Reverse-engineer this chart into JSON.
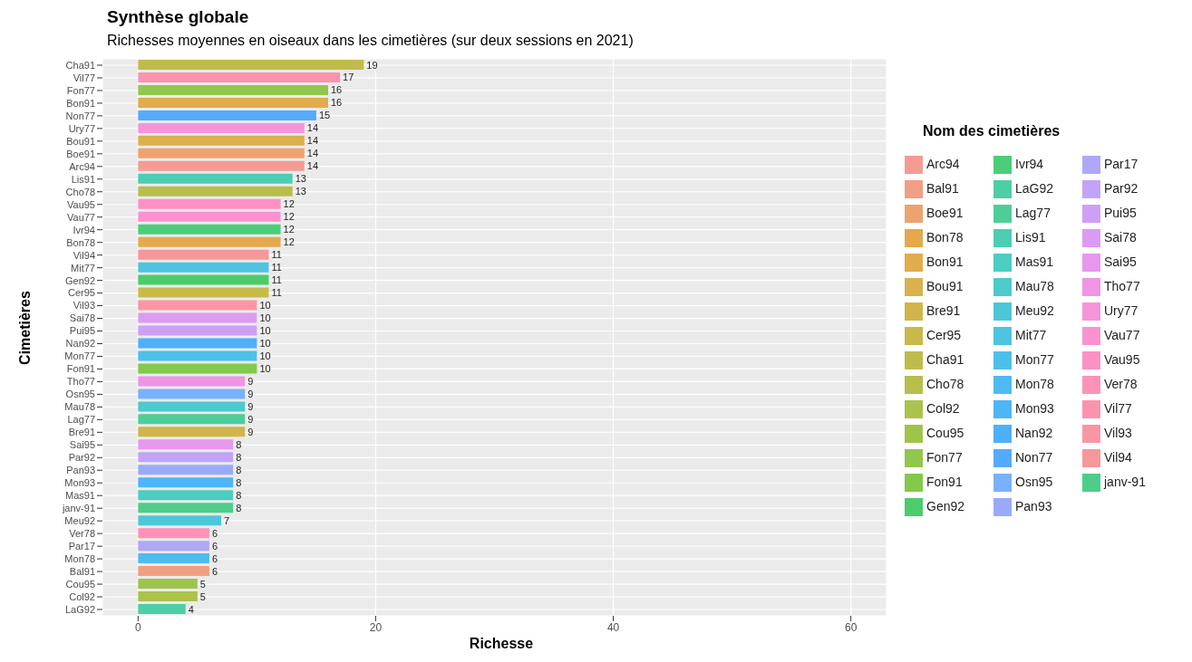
{
  "chart_data": {
    "type": "bar",
    "orientation": "horizontal",
    "stacked": true,
    "title": "Synthèse globale",
    "subtitle": "Richesses moyennes en oiseaux dans les cimetières (sur deux sessions en 2021)",
    "xlabel": "Richesse",
    "ylabel": "Cimetières",
    "legend_title": "Nom des cimetières",
    "legend": "right",
    "categories": [
      "Cha91",
      "Vil77",
      "Fon77",
      "Bon91",
      "Non77",
      "Ury77",
      "Bou91",
      "Boe91",
      "Arc94",
      "Lis91",
      "Cho78",
      "Vau95",
      "Vau77",
      "Ivr94",
      "Bon78",
      "Vil94",
      "Mit77",
      "Gen92",
      "Cer95",
      "Vil93",
      "Sai78",
      "Pui95",
      "Nan92",
      "Mon77",
      "Fon91",
      "Tho77",
      "Osn95",
      "Mau78",
      "Lag77",
      "Bre91",
      "Sai95",
      "Par92",
      "Pan93",
      "Mon93",
      "Mas91",
      "janv-91",
      "Meu92",
      "Ver78",
      "Par17",
      "Mon78",
      "Bal91",
      "Cou95",
      "Col92",
      "LaG92"
    ],
    "series": [
      {
        "name": "Arc94",
        "color": "#f59b93",
        "values": [
          null,
          null,
          null,
          null,
          null,
          null,
          null,
          null,
          14,
          null,
          null,
          null,
          null,
          null,
          null,
          null,
          null,
          null,
          null,
          null,
          null,
          null,
          null,
          null,
          null,
          null,
          null,
          null,
          null,
          null,
          null,
          null,
          null,
          null,
          null,
          null,
          null,
          null,
          null,
          null,
          null,
          null,
          null,
          null
        ]
      },
      {
        "name": "Bal91",
        "color": "#f19f84",
        "values": [
          null,
          null,
          null,
          null,
          null,
          null,
          null,
          null,
          null,
          null,
          null,
          null,
          null,
          null,
          null,
          null,
          null,
          null,
          null,
          null,
          null,
          null,
          null,
          null,
          null,
          null,
          null,
          null,
          null,
          null,
          null,
          null,
          null,
          null,
          null,
          null,
          null,
          null,
          null,
          null,
          6,
          null,
          null,
          null
        ]
      },
      {
        "name": "Boe91",
        "color": "#eca370",
        "values": [
          null,
          null,
          null,
          null,
          null,
          null,
          null,
          14,
          null,
          null,
          null,
          null,
          null,
          null,
          null,
          null,
          null,
          null,
          null,
          null,
          null,
          null,
          null,
          null,
          null,
          null,
          null,
          null,
          null,
          null,
          null,
          null,
          null,
          null,
          null,
          null,
          null,
          null,
          null,
          null,
          null,
          null,
          null,
          null
        ]
      },
      {
        "name": "Bon78",
        "color": "#e6a84c",
        "values": [
          null,
          null,
          null,
          null,
          null,
          null,
          null,
          null,
          null,
          null,
          null,
          null,
          null,
          null,
          12,
          null,
          null,
          null,
          null,
          null,
          null,
          null,
          null,
          null,
          null,
          null,
          null,
          null,
          null,
          null,
          null,
          null,
          null,
          null,
          null,
          null,
          null,
          null,
          null,
          null,
          null,
          null,
          null,
          null
        ]
      },
      {
        "name": "Bon91",
        "color": "#e0ac4c",
        "values": [
          null,
          null,
          null,
          16,
          null,
          null,
          null,
          null,
          null,
          null,
          null,
          null,
          null,
          null,
          null,
          null,
          null,
          null,
          null,
          null,
          null,
          null,
          null,
          null,
          null,
          null,
          null,
          null,
          null,
          null,
          null,
          null,
          null,
          null,
          null,
          null,
          null,
          null,
          null,
          null,
          null,
          null,
          null,
          null
        ]
      },
      {
        "name": "Bou91",
        "color": "#d9b14d",
        "values": [
          null,
          null,
          null,
          null,
          null,
          null,
          14,
          null,
          null,
          null,
          null,
          null,
          null,
          null,
          null,
          null,
          null,
          null,
          null,
          null,
          null,
          null,
          null,
          null,
          null,
          null,
          null,
          null,
          null,
          null,
          null,
          null,
          null,
          null,
          null,
          null,
          null,
          null,
          null,
          null,
          null,
          null,
          null,
          null
        ]
      },
      {
        "name": "Bre91",
        "color": "#d1b54c",
        "values": [
          null,
          null,
          null,
          null,
          null,
          null,
          null,
          null,
          null,
          null,
          null,
          null,
          null,
          null,
          null,
          null,
          null,
          null,
          null,
          null,
          null,
          null,
          null,
          null,
          null,
          null,
          null,
          null,
          null,
          9,
          null,
          null,
          null,
          null,
          null,
          null,
          null,
          null,
          null,
          null,
          null,
          null,
          null,
          null
        ]
      },
      {
        "name": "Cer95",
        "color": "#c8b94c",
        "values": [
          null,
          null,
          null,
          null,
          null,
          null,
          null,
          null,
          null,
          null,
          null,
          null,
          null,
          null,
          null,
          null,
          null,
          null,
          11,
          null,
          null,
          null,
          null,
          null,
          null,
          null,
          null,
          null,
          null,
          null,
          null,
          null,
          null,
          null,
          null,
          null,
          null,
          null,
          null,
          null,
          null,
          null,
          null,
          null
        ]
      },
      {
        "name": "Cha91",
        "color": "#c0bc4c",
        "values": [
          19,
          null,
          null,
          null,
          null,
          null,
          null,
          null,
          null,
          null,
          null,
          null,
          null,
          null,
          null,
          null,
          null,
          null,
          null,
          null,
          null,
          null,
          null,
          null,
          null,
          null,
          null,
          null,
          null,
          null,
          null,
          null,
          null,
          null,
          null,
          null,
          null,
          null,
          null,
          null,
          null,
          null,
          null,
          null
        ]
      },
      {
        "name": "Cho78",
        "color": "#b6bf4c",
        "values": [
          null,
          null,
          null,
          null,
          null,
          null,
          null,
          null,
          null,
          null,
          13,
          null,
          null,
          null,
          null,
          null,
          null,
          null,
          null,
          null,
          null,
          null,
          null,
          null,
          null,
          null,
          null,
          null,
          null,
          null,
          null,
          null,
          null,
          null,
          null,
          null,
          null,
          null,
          null,
          null,
          null,
          null,
          null,
          null
        ]
      },
      {
        "name": "Col92",
        "color": "#abc24c",
        "values": [
          null,
          null,
          null,
          null,
          null,
          null,
          null,
          null,
          null,
          null,
          null,
          null,
          null,
          null,
          null,
          null,
          null,
          null,
          null,
          null,
          null,
          null,
          null,
          null,
          null,
          null,
          null,
          null,
          null,
          null,
          null,
          null,
          null,
          null,
          null,
          null,
          null,
          null,
          null,
          null,
          null,
          null,
          5,
          null
        ]
      },
      {
        "name": "Cou95",
        "color": "#9fc44c",
        "values": [
          null,
          null,
          null,
          null,
          null,
          null,
          null,
          null,
          null,
          null,
          null,
          null,
          null,
          null,
          null,
          null,
          null,
          null,
          null,
          null,
          null,
          null,
          null,
          null,
          null,
          null,
          null,
          null,
          null,
          null,
          null,
          null,
          null,
          null,
          null,
          null,
          null,
          null,
          null,
          null,
          null,
          5,
          null,
          null
        ]
      },
      {
        "name": "Fon77",
        "color": "#91c74c",
        "values": [
          null,
          null,
          16,
          null,
          null,
          null,
          null,
          null,
          null,
          null,
          null,
          null,
          null,
          null,
          null,
          null,
          null,
          null,
          null,
          null,
          null,
          null,
          null,
          null,
          null,
          null,
          null,
          null,
          null,
          null,
          null,
          null,
          null,
          null,
          null,
          null,
          null,
          null,
          null,
          null,
          null,
          null,
          null,
          null
        ]
      },
      {
        "name": "Fon91",
        "color": "#82c94c",
        "values": [
          null,
          null,
          null,
          null,
          null,
          null,
          null,
          null,
          null,
          null,
          null,
          null,
          null,
          null,
          null,
          null,
          null,
          null,
          null,
          null,
          null,
          null,
          null,
          null,
          10,
          null,
          null,
          null,
          null,
          null,
          null,
          null,
          null,
          null,
          null,
          null,
          null,
          null,
          null,
          null,
          null,
          null,
          null,
          null
        ]
      },
      {
        "name": "Gen92",
        "color": "#4ccc6a",
        "values": [
          null,
          null,
          null,
          null,
          null,
          null,
          null,
          null,
          null,
          null,
          null,
          null,
          null,
          null,
          null,
          null,
          null,
          11,
          null,
          null,
          null,
          null,
          null,
          null,
          null,
          null,
          null,
          null,
          null,
          null,
          null,
          null,
          null,
          null,
          null,
          null,
          null,
          null,
          null,
          null,
          null,
          null,
          null,
          null
        ]
      },
      {
        "name": "Ivr94",
        "color": "#4ccd7a",
        "values": [
          null,
          null,
          null,
          null,
          null,
          null,
          null,
          null,
          null,
          null,
          null,
          null,
          null,
          12,
          null,
          null,
          null,
          null,
          null,
          null,
          null,
          null,
          null,
          null,
          null,
          null,
          null,
          null,
          null,
          null,
          null,
          null,
          null,
          null,
          null,
          null,
          null,
          null,
          null,
          null,
          null,
          null,
          null,
          null
        ]
      },
      {
        "name": "janv-91",
        "color": "#4dcd8a",
        "values": [
          null,
          null,
          null,
          null,
          null,
          null,
          null,
          null,
          null,
          null,
          null,
          null,
          null,
          null,
          null,
          null,
          null,
          null,
          null,
          null,
          null,
          null,
          null,
          null,
          null,
          null,
          null,
          null,
          null,
          null,
          null,
          null,
          null,
          null,
          null,
          8,
          null,
          null,
          null,
          null,
          null,
          null,
          null,
          null
        ]
      },
      {
        "name": "Lag77",
        "color": "#4dce98",
        "values": [
          null,
          null,
          null,
          null,
          null,
          null,
          null,
          null,
          null,
          null,
          null,
          null,
          null,
          null,
          null,
          null,
          null,
          null,
          null,
          null,
          null,
          null,
          null,
          null,
          null,
          null,
          null,
          null,
          9,
          null,
          null,
          null,
          null,
          null,
          null,
          null,
          null,
          null,
          null,
          null,
          null,
          null,
          null,
          null
        ]
      },
      {
        "name": "LaG92",
        "color": "#4dcea6",
        "values": [
          null,
          null,
          null,
          null,
          null,
          null,
          null,
          null,
          null,
          null,
          null,
          null,
          null,
          null,
          null,
          null,
          null,
          null,
          null,
          null,
          null,
          null,
          null,
          null,
          null,
          null,
          null,
          null,
          null,
          null,
          null,
          null,
          null,
          null,
          null,
          null,
          null,
          null,
          null,
          null,
          null,
          null,
          null,
          4
        ]
      },
      {
        "name": "Lis91",
        "color": "#4dcdb3",
        "values": [
          null,
          null,
          null,
          null,
          null,
          null,
          null,
          null,
          null,
          13,
          null,
          null,
          null,
          null,
          null,
          null,
          null,
          null,
          null,
          null,
          null,
          null,
          null,
          null,
          null,
          null,
          null,
          null,
          null,
          null,
          null,
          null,
          null,
          null,
          null,
          null,
          null,
          null,
          null,
          null,
          null,
          null,
          null,
          null
        ]
      },
      {
        "name": "Mas91",
        "color": "#4dccc0",
        "values": [
          null,
          null,
          null,
          null,
          null,
          null,
          null,
          null,
          null,
          null,
          null,
          null,
          null,
          null,
          null,
          null,
          null,
          null,
          null,
          null,
          null,
          null,
          null,
          null,
          null,
          null,
          null,
          null,
          null,
          null,
          null,
          null,
          null,
          null,
          8,
          null,
          null,
          null,
          null,
          null,
          null,
          null,
          null,
          null
        ]
      },
      {
        "name": "Mau78",
        "color": "#4dcacc",
        "values": [
          null,
          null,
          null,
          null,
          null,
          null,
          null,
          null,
          null,
          null,
          null,
          null,
          null,
          null,
          null,
          null,
          null,
          null,
          null,
          null,
          null,
          null,
          null,
          null,
          null,
          null,
          null,
          9,
          null,
          null,
          null,
          null,
          null,
          null,
          null,
          null,
          null,
          null,
          null,
          null,
          null,
          null,
          null,
          null
        ]
      },
      {
        "name": "Meu92",
        "color": "#4dc7d7",
        "values": [
          null,
          null,
          null,
          null,
          null,
          null,
          null,
          null,
          null,
          null,
          null,
          null,
          null,
          null,
          null,
          null,
          null,
          null,
          null,
          null,
          null,
          null,
          null,
          null,
          null,
          null,
          null,
          null,
          null,
          null,
          null,
          null,
          null,
          null,
          null,
          null,
          7,
          null,
          null,
          null,
          null,
          null,
          null,
          null
        ]
      },
      {
        "name": "Mit77",
        "color": "#4dc4e1",
        "values": [
          null,
          null,
          null,
          null,
          null,
          null,
          null,
          null,
          null,
          null,
          null,
          null,
          null,
          null,
          null,
          null,
          11,
          null,
          null,
          null,
          null,
          null,
          null,
          null,
          null,
          null,
          null,
          null,
          null,
          null,
          null,
          null,
          null,
          null,
          null,
          null,
          null,
          null,
          null,
          null,
          null,
          null,
          null,
          null
        ]
      },
      {
        "name": "Mon77",
        "color": "#4dc0ea",
        "values": [
          null,
          null,
          null,
          null,
          null,
          null,
          null,
          null,
          null,
          null,
          null,
          null,
          null,
          null,
          null,
          null,
          null,
          null,
          null,
          null,
          null,
          null,
          null,
          10,
          null,
          null,
          null,
          null,
          null,
          null,
          null,
          null,
          null,
          null,
          null,
          null,
          null,
          null,
          null,
          null,
          null,
          null,
          null,
          null
        ]
      },
      {
        "name": "Mon78",
        "color": "#4dbbf1",
        "values": [
          null,
          null,
          null,
          null,
          null,
          null,
          null,
          null,
          null,
          null,
          null,
          null,
          null,
          null,
          null,
          null,
          null,
          null,
          null,
          null,
          null,
          null,
          null,
          null,
          null,
          null,
          null,
          null,
          null,
          null,
          null,
          null,
          null,
          null,
          null,
          null,
          null,
          null,
          null,
          6,
          null,
          null,
          null,
          null
        ]
      },
      {
        "name": "Mon93",
        "color": "#4db6f7",
        "values": [
          null,
          null,
          null,
          null,
          null,
          null,
          null,
          null,
          null,
          null,
          null,
          null,
          null,
          null,
          null,
          null,
          null,
          null,
          null,
          null,
          null,
          null,
          null,
          null,
          null,
          null,
          null,
          null,
          null,
          null,
          null,
          null,
          null,
          8,
          null,
          null,
          null,
          null,
          null,
          null,
          null,
          null,
          null,
          null
        ]
      },
      {
        "name": "Nan92",
        "color": "#4db0fb",
        "values": [
          null,
          null,
          null,
          null,
          null,
          null,
          null,
          null,
          null,
          null,
          null,
          null,
          null,
          null,
          null,
          null,
          null,
          null,
          null,
          null,
          null,
          null,
          10,
          null,
          null,
          null,
          null,
          null,
          null,
          null,
          null,
          null,
          null,
          null,
          null,
          null,
          null,
          null,
          null,
          null,
          null,
          null,
          null,
          null
        ]
      },
      {
        "name": "Non77",
        "color": "#55aafe",
        "values": [
          null,
          null,
          null,
          null,
          15,
          null,
          null,
          null,
          null,
          null,
          null,
          null,
          null,
          null,
          null,
          null,
          null,
          null,
          null,
          null,
          null,
          null,
          null,
          null,
          null,
          null,
          null,
          null,
          null,
          null,
          null,
          null,
          null,
          null,
          null,
          null,
          null,
          null,
          null,
          null,
          null,
          null,
          null,
          null
        ]
      },
      {
        "name": "Osn95",
        "color": "#79b1ff",
        "values": [
          null,
          null,
          null,
          null,
          null,
          null,
          null,
          null,
          null,
          null,
          null,
          null,
          null,
          null,
          null,
          null,
          null,
          null,
          null,
          null,
          null,
          null,
          null,
          null,
          null,
          null,
          9,
          null,
          null,
          null,
          null,
          null,
          null,
          null,
          null,
          null,
          null,
          null,
          null,
          null,
          null,
          null,
          null,
          null
        ]
      },
      {
        "name": "Pan93",
        "color": "#9aaafa",
        "values": [
          null,
          null,
          null,
          null,
          null,
          null,
          null,
          null,
          null,
          null,
          null,
          null,
          null,
          null,
          null,
          null,
          null,
          null,
          null,
          null,
          null,
          null,
          null,
          null,
          null,
          null,
          null,
          null,
          null,
          null,
          null,
          null,
          8,
          null,
          null,
          null,
          null,
          null,
          null,
          null,
          null,
          null,
          null,
          null
        ]
      },
      {
        "name": "Par17",
        "color": "#aea8f9",
        "values": [
          null,
          null,
          null,
          null,
          null,
          null,
          null,
          null,
          null,
          null,
          null,
          null,
          null,
          null,
          null,
          null,
          null,
          null,
          null,
          null,
          null,
          null,
          null,
          null,
          null,
          null,
          null,
          null,
          null,
          null,
          null,
          null,
          null,
          null,
          null,
          null,
          null,
          null,
          6,
          null,
          null,
          null,
          null,
          null
        ]
      },
      {
        "name": "Par92",
        "color": "#c0a4f8",
        "values": [
          null,
          null,
          null,
          null,
          null,
          null,
          null,
          null,
          null,
          null,
          null,
          null,
          null,
          null,
          null,
          null,
          null,
          null,
          null,
          null,
          null,
          null,
          null,
          null,
          null,
          null,
          null,
          null,
          null,
          null,
          null,
          8,
          null,
          null,
          null,
          null,
          null,
          null,
          null,
          null,
          null,
          null,
          null,
          null
        ]
      },
      {
        "name": "Pui95",
        "color": "#cf9ff6",
        "values": [
          null,
          null,
          null,
          null,
          null,
          null,
          null,
          null,
          null,
          null,
          null,
          null,
          null,
          null,
          null,
          null,
          null,
          null,
          null,
          null,
          null,
          10,
          null,
          null,
          null,
          null,
          null,
          null,
          null,
          null,
          null,
          null,
          null,
          null,
          null,
          null,
          null,
          null,
          null,
          null,
          null,
          null,
          null,
          null
        ]
      },
      {
        "name": "Sai78",
        "color": "#dc9bf2",
        "values": [
          null,
          null,
          null,
          null,
          null,
          null,
          null,
          null,
          null,
          null,
          null,
          null,
          null,
          null,
          null,
          null,
          null,
          null,
          null,
          null,
          10,
          null,
          null,
          null,
          null,
          null,
          null,
          null,
          null,
          null,
          null,
          null,
          null,
          null,
          null,
          null,
          null,
          null,
          null,
          null,
          null,
          null,
          null,
          null
        ]
      },
      {
        "name": "Sai95",
        "color": "#e797ec",
        "values": [
          null,
          null,
          null,
          null,
          null,
          null,
          null,
          null,
          null,
          null,
          null,
          null,
          null,
          null,
          null,
          null,
          null,
          null,
          null,
          null,
          null,
          null,
          null,
          null,
          null,
          null,
          null,
          null,
          null,
          null,
          8,
          null,
          null,
          null,
          null,
          null,
          null,
          null,
          null,
          null,
          null,
          null,
          null,
          null
        ]
      },
      {
        "name": "Tho77",
        "color": "#f094e4",
        "values": [
          null,
          null,
          null,
          null,
          null,
          null,
          null,
          null,
          null,
          null,
          null,
          null,
          null,
          null,
          null,
          null,
          null,
          null,
          null,
          null,
          null,
          null,
          null,
          null,
          null,
          9,
          null,
          null,
          null,
          null,
          null,
          null,
          null,
          null,
          null,
          null,
          null,
          null,
          null,
          null,
          null,
          null,
          null,
          null
        ]
      },
      {
        "name": "Ury77",
        "color": "#f694da",
        "values": [
          null,
          null,
          null,
          null,
          null,
          14,
          null,
          null,
          null,
          null,
          null,
          null,
          null,
          null,
          null,
          null,
          null,
          null,
          null,
          null,
          null,
          null,
          null,
          null,
          null,
          null,
          null,
          null,
          null,
          null,
          null,
          null,
          null,
          null,
          null,
          null,
          null,
          null,
          null,
          null,
          null,
          null,
          null,
          null
        ]
      },
      {
        "name": "Vau77",
        "color": "#fa92cf",
        "values": [
          null,
          null,
          null,
          null,
          null,
          null,
          null,
          null,
          null,
          null,
          null,
          null,
          12,
          null,
          null,
          null,
          null,
          null,
          null,
          null,
          null,
          null,
          null,
          null,
          null,
          null,
          null,
          null,
          null,
          null,
          null,
          null,
          null,
          null,
          null,
          null,
          null,
          null,
          null,
          null,
          null,
          null,
          null,
          null
        ]
      },
      {
        "name": "Vau95",
        "color": "#fc91c4",
        "values": [
          null,
          null,
          null,
          null,
          null,
          null,
          null,
          null,
          null,
          null,
          null,
          12,
          null,
          null,
          null,
          null,
          null,
          null,
          null,
          null,
          null,
          null,
          null,
          null,
          null,
          null,
          null,
          null,
          null,
          null,
          null,
          null,
          null,
          null,
          null,
          null,
          null,
          null,
          null,
          null,
          null,
          null,
          null,
          null
        ]
      },
      {
        "name": "Ver78",
        "color": "#fd92b9",
        "values": [
          null,
          null,
          null,
          null,
          null,
          null,
          null,
          null,
          null,
          null,
          null,
          null,
          null,
          null,
          null,
          null,
          null,
          null,
          null,
          null,
          null,
          null,
          null,
          null,
          null,
          null,
          null,
          null,
          null,
          null,
          null,
          null,
          null,
          null,
          null,
          null,
          null,
          6,
          null,
          null,
          null,
          null,
          null,
          null
        ]
      },
      {
        "name": "Vil77",
        "color": "#fb93ad",
        "values": [
          null,
          17,
          null,
          null,
          null,
          null,
          null,
          null,
          null,
          null,
          null,
          null,
          null,
          null,
          null,
          null,
          null,
          null,
          null,
          null,
          null,
          null,
          null,
          null,
          null,
          null,
          null,
          null,
          null,
          null,
          null,
          null,
          null,
          null,
          null,
          null,
          null,
          null,
          null,
          null,
          null,
          null,
          null,
          null
        ]
      },
      {
        "name": "Vil93",
        "color": "#f996a3",
        "values": [
          null,
          null,
          null,
          null,
          null,
          null,
          null,
          null,
          null,
          null,
          null,
          null,
          null,
          null,
          null,
          null,
          null,
          null,
          null,
          10,
          null,
          null,
          null,
          null,
          null,
          null,
          null,
          null,
          null,
          null,
          null,
          null,
          null,
          null,
          null,
          null,
          null,
          null,
          null,
          null,
          null,
          null,
          null,
          null
        ]
      },
      {
        "name": "Vil94",
        "color": "#f6979a",
        "values": [
          null,
          null,
          null,
          null,
          null,
          null,
          null,
          null,
          null,
          null,
          null,
          null,
          null,
          null,
          null,
          11,
          null,
          null,
          null,
          null,
          null,
          null,
          null,
          null,
          null,
          null,
          null,
          null,
          null,
          null,
          null,
          null,
          null,
          null,
          null,
          null,
          null,
          null,
          null,
          null,
          null,
          null,
          null,
          null
        ]
      }
    ],
    "xlim": [
      -3,
      63
    ],
    "xticks": [
      0,
      20,
      40,
      60
    ],
    "grid": true,
    "data_labels": true
  }
}
